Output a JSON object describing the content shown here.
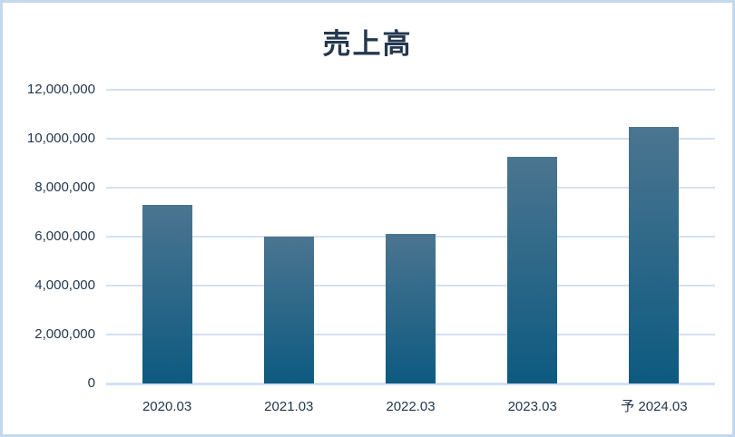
{
  "chart_data": {
    "type": "bar",
    "title": "売上高",
    "categories": [
      "2020.03",
      "2021.03",
      "2022.03",
      "2023.03",
      "予 2024.03"
    ],
    "values": [
      7300000,
      6000000,
      6100000,
      9250000,
      10500000
    ],
    "xlabel": "",
    "ylabel": "",
    "ylim": [
      0,
      12000000
    ],
    "ytick_values": [
      0,
      2000000,
      4000000,
      6000000,
      8000000,
      10000000,
      12000000
    ],
    "ytick_labels": [
      "0",
      "2,000,000",
      "4,000,000",
      "6,000,000",
      "8,000,000",
      "10,000,000",
      "12,000,000"
    ],
    "grid": true,
    "legend": null
  },
  "colors": {
    "bar_gradient_top": "#4b7590",
    "bar_gradient_bottom": "#0d5a80",
    "gridline": "#d2e1f3",
    "axis_line": "#d2e1f3",
    "card_border": "#c3d8ef",
    "text": "#24384f",
    "title": "#24384f",
    "background": "#ffffff"
  }
}
